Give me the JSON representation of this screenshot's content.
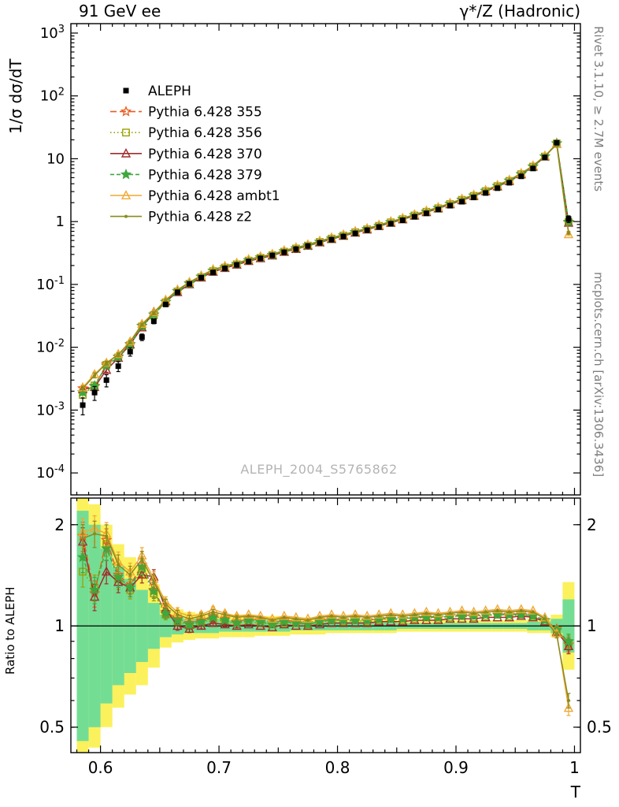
{
  "header": {
    "left": "91 GeV ee",
    "right": "γ*/Z (Hadronic)"
  },
  "side_labels": {
    "top_right": "Rivet 3.1.10, ≥ 2.7M events",
    "bottom_right": "mcplots.cern.ch [arXiv:1306.3436]"
  },
  "watermark": "ALEPH_2004_S5765862",
  "chart_data": {
    "type": "line",
    "title": "91 GeV ee — γ*/Z (Hadronic) thrust distribution with MC/data ratio",
    "xlabel": "T",
    "ylabel": "1/σ dσ/dT",
    "ratio_ylabel": "Ratio to ALEPH",
    "legend_position": "top-left",
    "axes": {
      "xlim": [
        0.575,
        1.005
      ],
      "x_ticks": [
        0.6,
        0.7,
        0.8,
        0.9,
        1
      ],
      "x_tick_labels": [
        "0.6",
        "0.7",
        "0.8",
        "0.9",
        "1"
      ],
      "y_main_log10_lim": [
        -4.35,
        3.15
      ],
      "y_main_tick_exponents": [
        3,
        2,
        1,
        0,
        -1,
        -2,
        -3,
        -4
      ],
      "ratio_lim": [
        0.42,
        2.4
      ],
      "ratio_ticks": [
        2,
        1,
        0.5
      ],
      "ratio_tick_labels": [
        "2",
        "1",
        "0.5"
      ],
      "ratio_minor_ticks": [
        0.5,
        0.6,
        0.7,
        0.8,
        0.9,
        2
      ]
    },
    "x": [
      0.585,
      0.595,
      0.605,
      0.615,
      0.625,
      0.635,
      0.645,
      0.655,
      0.665,
      0.675,
      0.685,
      0.695,
      0.705,
      0.715,
      0.725,
      0.735,
      0.745,
      0.755,
      0.765,
      0.775,
      0.785,
      0.795,
      0.805,
      0.815,
      0.825,
      0.835,
      0.845,
      0.855,
      0.865,
      0.875,
      0.885,
      0.895,
      0.905,
      0.915,
      0.925,
      0.935,
      0.945,
      0.955,
      0.965,
      0.975,
      0.985,
      0.995
    ],
    "reference": {
      "name": "ALEPH",
      "color": "#000000",
      "marker": "square",
      "values": [
        0.0012,
        0.0019,
        0.003,
        0.005,
        0.0085,
        0.0145,
        0.026,
        0.048,
        0.075,
        0.102,
        0.128,
        0.155,
        0.18,
        0.205,
        0.232,
        0.26,
        0.29,
        0.325,
        0.365,
        0.41,
        0.46,
        0.515,
        0.58,
        0.65,
        0.73,
        0.82,
        0.925,
        1.05,
        1.19,
        1.35,
        1.55,
        1.79,
        2.07,
        2.42,
        2.85,
        3.4,
        4.15,
        5.25,
        7.0,
        10.5,
        18.0,
        1.1
      ],
      "err_frac": [
        0.3,
        0.25,
        0.22,
        0.18,
        0.15,
        0.12,
        0.09,
        0.06,
        0.05,
        0.04,
        0.035,
        0.03,
        0.03,
        0.025,
        0.025,
        0.02,
        0.02,
        0.02,
        0.02,
        0.02,
        0.015,
        0.015,
        0.015,
        0.015,
        0.015,
        0.015,
        0.015,
        0.015,
        0.015,
        0.015,
        0.015,
        0.015,
        0.015,
        0.015,
        0.015,
        0.015,
        0.015,
        0.015,
        0.02,
        0.02,
        0.03,
        0.12
      ]
    },
    "series": [
      {
        "name": "Pythia 6.428 355",
        "color": "#e85d22",
        "dash": "8 4",
        "marker": "star-open",
        "ratio": [
          1.85,
          1.25,
          1.8,
          1.42,
          1.32,
          1.52,
          1.28,
          1.1,
          1.05,
          1.02,
          1.04,
          1.07,
          1.05,
          1.03,
          1.05,
          1.04,
          1.02,
          1.04,
          1.03,
          1.02,
          1.04,
          1.05,
          1.04,
          1.05,
          1.04,
          1.05,
          1.06,
          1.05,
          1.06,
          1.07,
          1.06,
          1.07,
          1.08,
          1.07,
          1.08,
          1.09,
          1.08,
          1.09,
          1.08,
          1.04,
          0.98,
          0.88
        ]
      },
      {
        "name": "Pythia 6.428 356",
        "color": "#9aa000",
        "dash": "1.5 3",
        "marker": "square-open",
        "ratio": [
          1.45,
          1.3,
          1.75,
          1.38,
          1.28,
          1.48,
          1.25,
          1.08,
          1.03,
          1.0,
          1.02,
          1.05,
          1.03,
          1.02,
          1.03,
          1.02,
          1.01,
          1.02,
          1.02,
          1.01,
          1.03,
          1.04,
          1.03,
          1.04,
          1.03,
          1.04,
          1.05,
          1.04,
          1.05,
          1.06,
          1.05,
          1.06,
          1.07,
          1.06,
          1.07,
          1.08,
          1.07,
          1.08,
          1.07,
          1.03,
          0.97,
          0.89
        ]
      },
      {
        "name": "Pythia 6.428 370",
        "color": "#a02c2c",
        "dash": "",
        "marker": "triangle-open",
        "ratio": [
          1.78,
          1.22,
          1.45,
          1.35,
          1.3,
          1.42,
          1.4,
          1.12,
          1.0,
          0.98,
          1.0,
          1.02,
          1.01,
          1.0,
          1.01,
          1.0,
          0.99,
          1.01,
          1.0,
          1.0,
          1.01,
          1.02,
          1.02,
          1.02,
          1.02,
          1.03,
          1.03,
          1.03,
          1.04,
          1.04,
          1.04,
          1.05,
          1.05,
          1.05,
          1.06,
          1.06,
          1.06,
          1.07,
          1.06,
          1.03,
          0.96,
          0.87
        ]
      },
      {
        "name": "Pythia 6.428 379",
        "color": "#3fa73f",
        "dash": "5 3",
        "marker": "star-filled",
        "ratio": [
          1.6,
          1.28,
          1.7,
          1.4,
          1.3,
          1.5,
          1.27,
          1.09,
          1.04,
          1.01,
          1.03,
          1.06,
          1.04,
          1.02,
          1.04,
          1.03,
          1.01,
          1.03,
          1.02,
          1.01,
          1.03,
          1.04,
          1.04,
          1.04,
          1.04,
          1.05,
          1.05,
          1.05,
          1.06,
          1.06,
          1.06,
          1.07,
          1.07,
          1.07,
          1.08,
          1.08,
          1.08,
          1.08,
          1.07,
          1.04,
          0.97,
          0.9
        ]
      },
      {
        "name": "Pythia 6.428 ambt1",
        "color": "#f0a830",
        "dash": "",
        "marker": "triangle-open",
        "ratio": [
          1.9,
          1.95,
          1.88,
          1.55,
          1.45,
          1.62,
          1.38,
          1.18,
          1.1,
          1.07,
          1.08,
          1.12,
          1.09,
          1.07,
          1.08,
          1.07,
          1.05,
          1.07,
          1.06,
          1.05,
          1.07,
          1.08,
          1.07,
          1.08,
          1.07,
          1.08,
          1.09,
          1.08,
          1.09,
          1.1,
          1.09,
          1.1,
          1.11,
          1.1,
          1.11,
          1.12,
          1.11,
          1.12,
          1.11,
          1.06,
          0.95,
          0.57
        ]
      },
      {
        "name": "Pythia 6.428 z2",
        "color": "#8a8a1e",
        "dash": "",
        "marker": "dot",
        "ratio": [
          1.82,
          1.88,
          1.85,
          1.52,
          1.42,
          1.58,
          1.35,
          1.16,
          1.08,
          1.05,
          1.07,
          1.1,
          1.08,
          1.06,
          1.07,
          1.06,
          1.04,
          1.06,
          1.05,
          1.04,
          1.06,
          1.07,
          1.06,
          1.07,
          1.06,
          1.07,
          1.08,
          1.07,
          1.08,
          1.09,
          1.08,
          1.09,
          1.1,
          1.09,
          1.1,
          1.11,
          1.1,
          1.11,
          1.1,
          1.05,
          0.94,
          0.6
        ]
      }
    ],
    "mc_err_frac": [
      0.1,
      0.09,
      0.08,
      0.07,
      0.06,
      0.055,
      0.05,
      0.035,
      0.03,
      0.025,
      0.02,
      0.018,
      0.015,
      0.013,
      0.012,
      0.011,
      0.01,
      0.01,
      0.01,
      0.01,
      0.008,
      0.008,
      0.008,
      0.008,
      0.008,
      0.008,
      0.008,
      0.008,
      0.008,
      0.008,
      0.008,
      0.008,
      0.008,
      0.008,
      0.008,
      0.008,
      0.008,
      0.01,
      0.01,
      0.012,
      0.02,
      0.05
    ],
    "bands": {
      "yellow_color": "#fbf15c",
      "green_color": "#74dd94",
      "yellow_frac": [
        1.4,
        1.3,
        1.0,
        0.75,
        0.6,
        0.5,
        0.33,
        0.16,
        0.12,
        0.1,
        0.09,
        0.09,
        0.08,
        0.08,
        0.08,
        0.07,
        0.07,
        0.07,
        0.06,
        0.06,
        0.06,
        0.05,
        0.05,
        0.05,
        0.05,
        0.05,
        0.05,
        0.04,
        0.04,
        0.04,
        0.04,
        0.04,
        0.04,
        0.04,
        0.04,
        0.04,
        0.04,
        0.04,
        0.05,
        0.05,
        0.08,
        0.35
      ],
      "green_frac": [
        1.2,
        1.0,
        0.7,
        0.5,
        0.38,
        0.28,
        0.17,
        0.08,
        0.06,
        0.05,
        0.05,
        0.05,
        0.04,
        0.04,
        0.04,
        0.04,
        0.04,
        0.04,
        0.03,
        0.03,
        0.03,
        0.03,
        0.03,
        0.03,
        0.03,
        0.03,
        0.03,
        0.02,
        0.02,
        0.02,
        0.02,
        0.02,
        0.02,
        0.02,
        0.02,
        0.02,
        0.02,
        0.02,
        0.03,
        0.03,
        0.05,
        0.2
      ]
    }
  }
}
